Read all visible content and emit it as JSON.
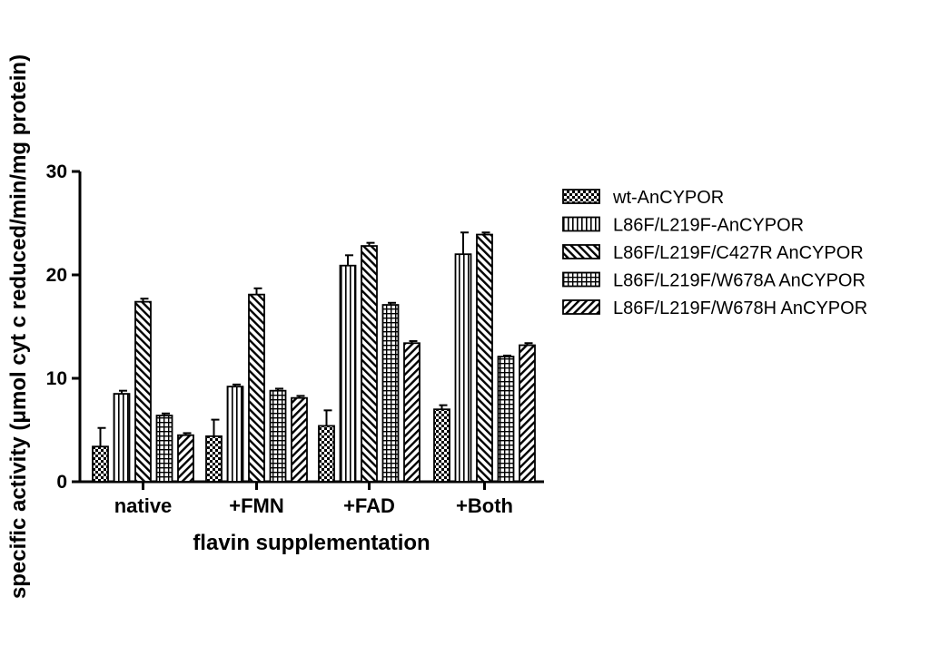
{
  "chart_data": {
    "type": "bar",
    "title": "",
    "xlabel": "flavin supplementation",
    "ylabel": "specific activity (μmol cyt c reduced/min/mg protein)",
    "ylim": [
      0,
      30
    ],
    "yticks": [
      0,
      10,
      20,
      30
    ],
    "grid": false,
    "legend_position": "right",
    "categories": [
      "native",
      "+FMN",
      "+FAD",
      "+Both"
    ],
    "series": [
      {
        "name": "wt-AnCYPOR",
        "pattern": "checker",
        "values": [
          3.4,
          4.4,
          5.4,
          7.0
        ],
        "errors": [
          1.8,
          1.6,
          1.5,
          0.4
        ]
      },
      {
        "name": "L86F/L219F-AnCYPOR",
        "pattern": "vertical",
        "values": [
          8.5,
          9.2,
          20.9,
          22.0
        ],
        "errors": [
          0.3,
          0.2,
          1.0,
          2.1
        ]
      },
      {
        "name": "L86F/L219F/C427R AnCYPOR",
        "pattern": "diagonal-back",
        "values": [
          17.4,
          18.1,
          22.8,
          23.9
        ],
        "errors": [
          0.3,
          0.6,
          0.3,
          0.2
        ]
      },
      {
        "name": "L86F/L219F/W678A AnCYPOR",
        "pattern": "grid",
        "values": [
          6.4,
          8.8,
          17.1,
          12.1
        ],
        "errors": [
          0.2,
          0.2,
          0.2,
          0.1
        ]
      },
      {
        "name": "L86F/L219F/W678H AnCYPOR",
        "pattern": "diagonal-fwd",
        "values": [
          4.5,
          8.1,
          13.4,
          13.2
        ],
        "errors": [
          0.2,
          0.2,
          0.2,
          0.2
        ]
      }
    ]
  }
}
